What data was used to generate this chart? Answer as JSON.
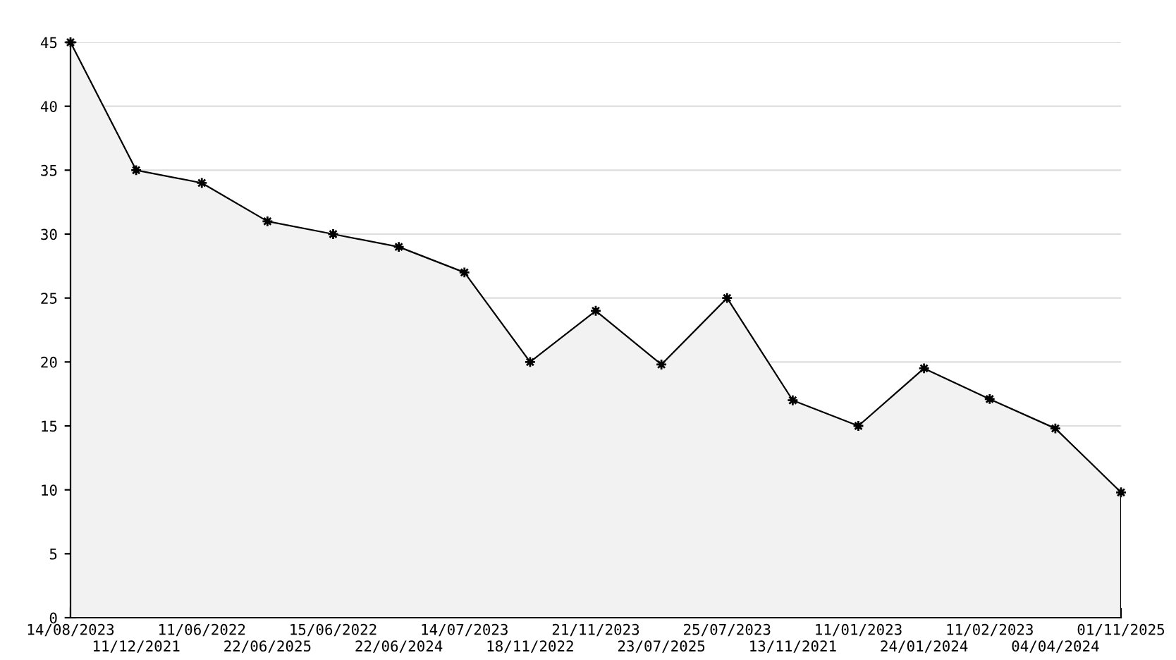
{
  "chart_data": {
    "type": "area",
    "categories": [
      "14/08/2023",
      "11/12/2021",
      "11/06/2022",
      "22/06/2025",
      "15/06/2022",
      "22/06/2024",
      "14/07/2023",
      "18/11/2022",
      "21/11/2023",
      "23/07/2025",
      "25/07/2023",
      "13/11/2021",
      "11/01/2023",
      "24/01/2024",
      "11/02/2023",
      "04/04/2024",
      "01/11/2025"
    ],
    "series": [
      {
        "color": "#000000",
        "values": [
          45,
          35,
          34,
          31,
          30,
          29,
          27,
          20,
          24,
          19.8,
          25,
          17,
          15,
          19.5,
          17.1,
          14.8,
          9.8
        ]
      }
    ],
    "ylim": [
      0,
      45
    ],
    "yticks": [
      0,
      5,
      10,
      15,
      20,
      25,
      30,
      35,
      40,
      45
    ],
    "grid": "y",
    "marker": "star",
    "line_style": "solid"
  }
}
